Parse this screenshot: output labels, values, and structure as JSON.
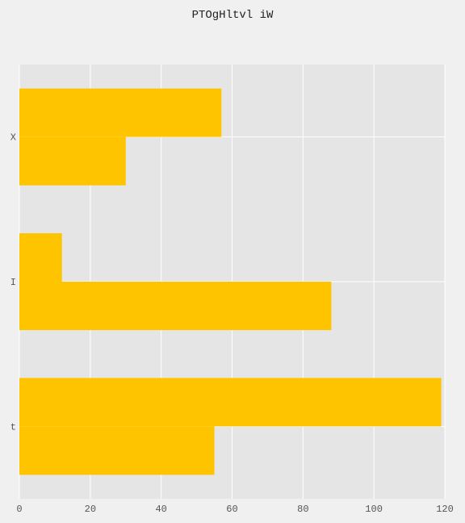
{
  "chart_data": {
    "type": "bar",
    "orientation": "horizontal",
    "title": "PTOgHltvl iW",
    "xlabel": "",
    "ylabel": "",
    "categories": [
      "X",
      "I",
      "t"
    ],
    "series": [
      {
        "values": [
          57,
          12,
          119
        ]
      },
      {
        "values": [
          30,
          88,
          55
        ]
      }
    ],
    "xlim": [
      0,
      120
    ],
    "xticks": [
      0,
      20,
      40,
      60,
      80,
      100,
      120
    ],
    "grid": true,
    "legend": "none",
    "colors": {
      "bar": "#ffc400",
      "plot_background": "#e5e5e5",
      "page_background": "#f0f0f0",
      "grid": "#ffffff"
    }
  }
}
